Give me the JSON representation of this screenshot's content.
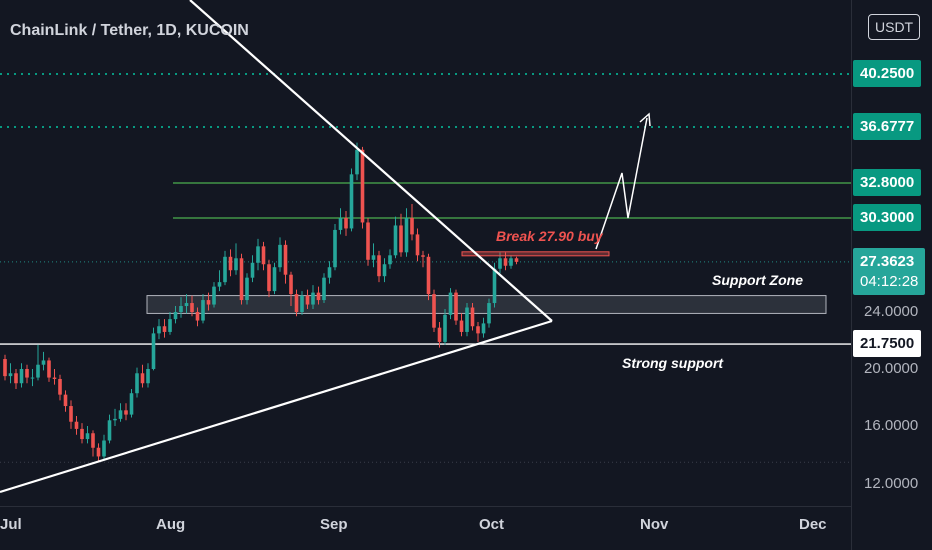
{
  "header": {
    "title": "ChainLink / Tether, 1D, KUCOIN",
    "currency": "USDT"
  },
  "colors": {
    "background": "#131722",
    "up": "#26a69a",
    "down": "#ef5350",
    "level_green": "#4caf50",
    "marker_dotted": "#089981",
    "white": "#ffffff"
  },
  "chart_data": {
    "type": "candlestick",
    "title": "ChainLink / Tether, 1D, KUCOIN",
    "ylim": [
      11,
      46
    ],
    "y_tick_labels": [
      "12.0000",
      "16.0000",
      "20.0000",
      "24.0000"
    ],
    "x_tick_labels": [
      "Jul",
      "Aug",
      "Sep",
      "Oct",
      "Nov",
      "Dec"
    ],
    "price_labels": [
      {
        "value": 40.25,
        "text": "40.2500",
        "color": "#089981"
      },
      {
        "value": 36.6777,
        "text": "36.6777",
        "color": "#089981"
      },
      {
        "value": 32.8,
        "text": "32.8000",
        "color": "#089981"
      },
      {
        "value": 30.3,
        "text": "30.3000",
        "color": "#089981"
      },
      {
        "value": 27.3623,
        "text": "27.3623",
        "color": "#26a69a",
        "countdown": "04:12:28"
      },
      {
        "value": 21.75,
        "text": "21.7500",
        "color": "#ffffff"
      }
    ],
    "annotations": {
      "break_label": "Break 27.90 buy",
      "support_zone_label": "Support Zone",
      "strong_support_label": "Strong support"
    },
    "levels": {
      "dotted": [
        40.25,
        36.6777
      ],
      "green": [
        32.8,
        30.3
      ],
      "break_level": 27.9,
      "support_zone": [
        23.9,
        25.1
      ],
      "strong_support": 21.75
    },
    "candles": [
      [
        20.7,
        19.5,
        21.0,
        19.2
      ],
      [
        19.5,
        19.7,
        20.4,
        19.0
      ],
      [
        19.7,
        19.0,
        20.0,
        18.6
      ],
      [
        19.0,
        20.0,
        20.4,
        18.7
      ],
      [
        20.0,
        19.4,
        20.3,
        19.0
      ],
      [
        19.4,
        19.4,
        20.0,
        18.8
      ],
      [
        19.4,
        20.3,
        21.7,
        19.2
      ],
      [
        20.3,
        20.6,
        21.2,
        19.9
      ],
      [
        20.6,
        19.4,
        20.8,
        19.1
      ],
      [
        19.4,
        19.3,
        20.0,
        18.9
      ],
      [
        19.3,
        18.2,
        19.6,
        17.8
      ],
      [
        18.2,
        17.4,
        18.5,
        17.0
      ],
      [
        17.4,
        16.3,
        17.8,
        15.8
      ],
      [
        16.3,
        15.8,
        16.7,
        15.4
      ],
      [
        15.8,
        15.1,
        16.2,
        14.8
      ],
      [
        15.1,
        15.5,
        16.0,
        14.8
      ],
      [
        15.5,
        14.5,
        15.7,
        13.9
      ],
      [
        14.5,
        13.9,
        14.8,
        13.5
      ],
      [
        13.9,
        15.0,
        15.4,
        13.6
      ],
      [
        15.0,
        16.4,
        16.8,
        14.8
      ],
      [
        16.4,
        16.5,
        17.2,
        16.0
      ],
      [
        16.5,
        17.1,
        17.6,
        16.3
      ],
      [
        17.1,
        16.8,
        17.6,
        16.4
      ],
      [
        16.8,
        18.3,
        18.6,
        16.6
      ],
      [
        18.3,
        19.7,
        20.1,
        18.0
      ],
      [
        19.7,
        19.0,
        20.3,
        18.7
      ],
      [
        19.0,
        20.0,
        20.4,
        18.7
      ],
      [
        20.0,
        22.5,
        22.9,
        19.9
      ],
      [
        22.5,
        23.0,
        23.5,
        22.1
      ],
      [
        23.0,
        22.6,
        23.5,
        22.2
      ],
      [
        22.6,
        23.5,
        24.0,
        22.4
      ],
      [
        23.5,
        24.0,
        24.4,
        23.2
      ],
      [
        24.0,
        24.4,
        25.0,
        23.6
      ],
      [
        24.4,
        24.6,
        25.2,
        23.9
      ],
      [
        24.6,
        24.0,
        25.1,
        23.7
      ],
      [
        24.0,
        23.4,
        24.3,
        23.0
      ],
      [
        23.4,
        24.8,
        25.2,
        23.2
      ],
      [
        24.8,
        24.5,
        25.3,
        24.1
      ],
      [
        24.5,
        25.7,
        26.0,
        24.3
      ],
      [
        25.7,
        26.0,
        26.8,
        25.4
      ],
      [
        26.0,
        27.7,
        28.1,
        25.8
      ],
      [
        27.7,
        26.8,
        28.2,
        26.4
      ],
      [
        26.8,
        27.6,
        28.6,
        26.5
      ],
      [
        27.6,
        24.8,
        27.9,
        24.5
      ],
      [
        24.8,
        26.3,
        26.6,
        24.5
      ],
      [
        26.3,
        27.3,
        27.8,
        26.0
      ],
      [
        27.3,
        28.4,
        28.9,
        26.8
      ],
      [
        28.4,
        27.2,
        28.7,
        26.8
      ],
      [
        27.2,
        25.4,
        27.5,
        25.0
      ],
      [
        25.4,
        27.0,
        27.3,
        25.2
      ],
      [
        27.0,
        28.5,
        29.0,
        26.7
      ],
      [
        28.5,
        26.5,
        28.8,
        25.9
      ],
      [
        26.5,
        25.2,
        26.7,
        24.4
      ],
      [
        25.2,
        24.0,
        25.5,
        23.7
      ],
      [
        24.0,
        25.1,
        25.4,
        23.8
      ],
      [
        25.1,
        24.5,
        25.5,
        24.2
      ],
      [
        24.5,
        25.3,
        25.8,
        24.2
      ],
      [
        25.3,
        24.8,
        25.7,
        24.5
      ],
      [
        24.8,
        26.3,
        26.6,
        24.6
      ],
      [
        26.3,
        27.0,
        27.4,
        25.9
      ],
      [
        27.0,
        29.5,
        29.9,
        26.8
      ],
      [
        29.5,
        30.3,
        31.0,
        29.2
      ],
      [
        30.3,
        29.6,
        30.8,
        29.1
      ],
      [
        29.6,
        33.4,
        33.8,
        29.4
      ],
      [
        33.4,
        35.1,
        35.6,
        33.0
      ],
      [
        35.1,
        30.0,
        35.3,
        29.6
      ],
      [
        30.0,
        27.5,
        30.3,
        27.1
      ],
      [
        27.5,
        27.8,
        28.6,
        27.0
      ],
      [
        27.8,
        26.4,
        28.1,
        26.0
      ],
      [
        26.4,
        27.2,
        27.6,
        26.0
      ],
      [
        27.2,
        27.8,
        28.2,
        26.9
      ],
      [
        27.8,
        29.8,
        30.4,
        27.6
      ],
      [
        29.8,
        28.0,
        30.6,
        27.7
      ],
      [
        28.0,
        30.3,
        31.0,
        27.7
      ],
      [
        30.3,
        29.2,
        31.3,
        28.8
      ],
      [
        29.2,
        27.8,
        29.6,
        27.4
      ],
      [
        27.8,
        27.7,
        28.1,
        27.0
      ],
      [
        27.7,
        25.2,
        27.9,
        24.8
      ],
      [
        25.2,
        22.9,
        25.5,
        22.6
      ],
      [
        22.9,
        21.9,
        23.3,
        21.5
      ],
      [
        21.9,
        23.8,
        24.2,
        21.7
      ],
      [
        23.8,
        25.3,
        25.6,
        23.5
      ],
      [
        25.3,
        23.4,
        25.5,
        23.1
      ],
      [
        23.4,
        22.6,
        23.9,
        22.3
      ],
      [
        22.6,
        24.3,
        24.6,
        22.3
      ],
      [
        24.3,
        23.0,
        24.6,
        22.7
      ],
      [
        23.0,
        22.5,
        23.3,
        21.9
      ],
      [
        22.5,
        23.2,
        23.6,
        22.2
      ],
      [
        23.2,
        24.6,
        24.9,
        22.9
      ],
      [
        24.6,
        26.9,
        27.3,
        24.3
      ],
      [
        26.9,
        27.6,
        28.0,
        26.6
      ],
      [
        27.6,
        27.1,
        28.0,
        26.8
      ],
      [
        27.1,
        27.6,
        27.8,
        26.9
      ],
      [
        27.6,
        27.36,
        27.7,
        27.2
      ]
    ]
  },
  "time_ticks": [
    "Jul",
    "Aug",
    "Sep",
    "Oct",
    "Nov",
    "Dec"
  ]
}
